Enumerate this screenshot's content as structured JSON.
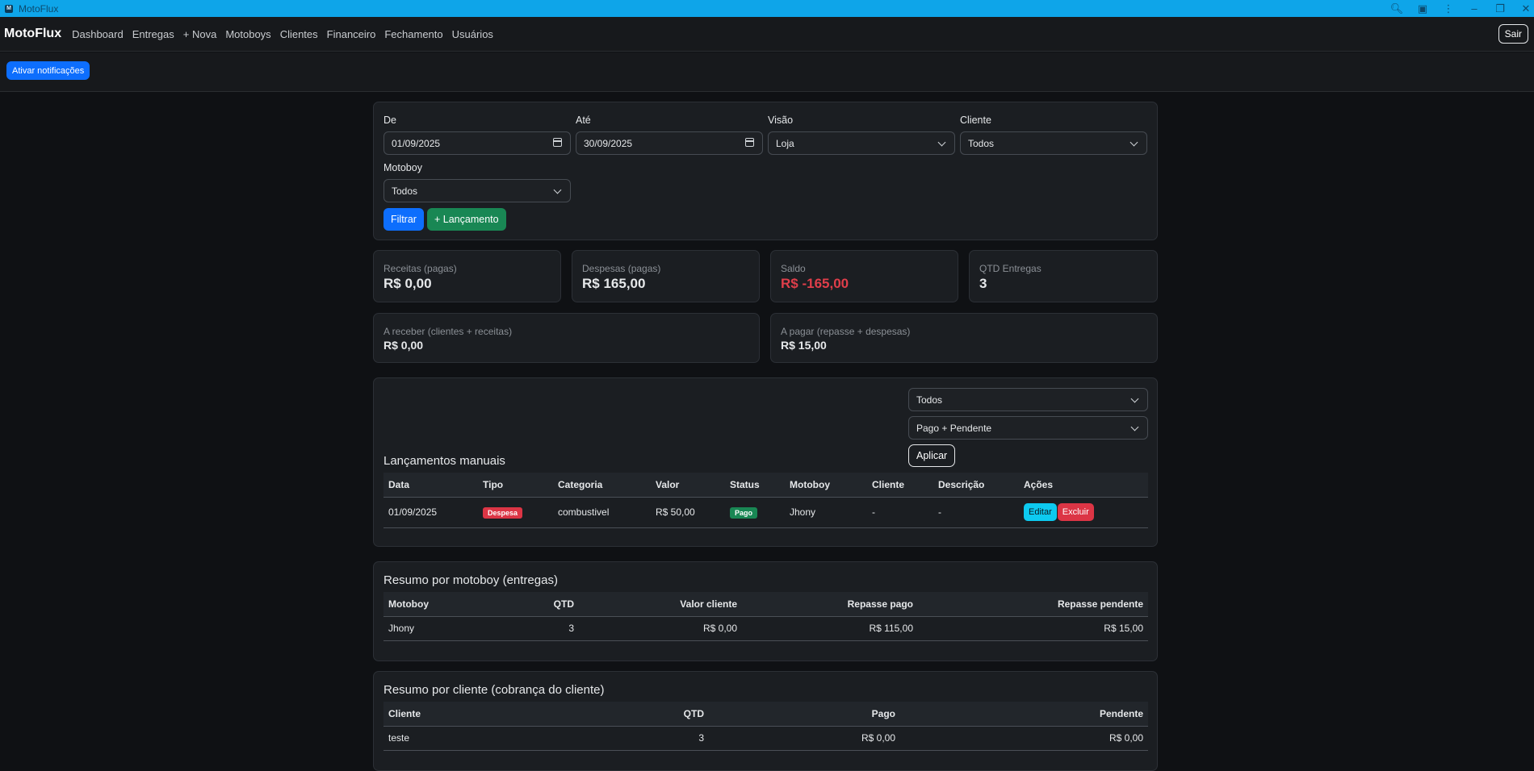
{
  "window": {
    "title": "MotoFlux",
    "app_icon": "M"
  },
  "nav": {
    "brand": "MotoFlux",
    "links": [
      "Dashboard",
      "Entregas",
      "+ Nova",
      "Motoboys",
      "Clientes",
      "Financeiro",
      "Fechamento",
      "Usuários"
    ],
    "logout": "Sair"
  },
  "notif": {
    "button": "Ativar notificações"
  },
  "filters": {
    "de_label": "De",
    "de_value": "01/09/2025",
    "ate_label": "Até",
    "ate_value": "30/09/2025",
    "visao_label": "Visão",
    "visao_value": "Loja",
    "cliente_label": "Cliente",
    "cliente_value": "Todos",
    "motoboy_label": "Motoboy",
    "motoboy_value": "Todos",
    "filtrar": "Filtrar",
    "lancamento": "+ Lançamento"
  },
  "cards": {
    "receitas_label": "Receitas (pagas)",
    "receitas_value": "R$ 0,00",
    "despesas_label": "Despesas (pagas)",
    "despesas_value": "R$ 165,00",
    "saldo_label": "Saldo",
    "saldo_value": "R$ -165,00",
    "qtd_label": "QTD Entregas",
    "qtd_value": "3",
    "receber_label": "A receber (clientes + receitas)",
    "receber_value": "R$ 0,00",
    "pagar_label": "A pagar (repasse + despesas)",
    "pagar_value": "R$ 15,00"
  },
  "manual": {
    "title": "Lançamentos manuais",
    "filter_tipo": "Todos",
    "filter_status": "Pago + Pendente",
    "apply": "Aplicar",
    "headers": [
      "Data",
      "Tipo",
      "Categoria",
      "Valor",
      "Status",
      "Motoboy",
      "Cliente",
      "Descrição",
      "Ações"
    ],
    "rows": [
      {
        "data": "01/09/2025",
        "tipo": "Despesa",
        "categoria": "combustivel",
        "valor": "R$ 50,00",
        "status": "Pago",
        "motoboy": "Jhony",
        "cliente": "-",
        "descricao": "-",
        "edit": "Editar",
        "delete": "Excluir"
      }
    ]
  },
  "resumo_motoboy": {
    "title": "Resumo por motoboy (entregas)",
    "headers": [
      "Motoboy",
      "QTD",
      "Valor cliente",
      "Repasse pago",
      "Repasse pendente"
    ],
    "rows": [
      {
        "motoboy": "Jhony",
        "qtd": "3",
        "valor_cliente": "R$ 0,00",
        "repasse_pago": "R$ 115,00",
        "repasse_pendente": "R$ 15,00"
      }
    ]
  },
  "resumo_cliente": {
    "title": "Resumo por cliente (cobrança do cliente)",
    "headers": [
      "Cliente",
      "QTD",
      "Pago",
      "Pendente"
    ],
    "rows": [
      {
        "cliente": "teste",
        "qtd": "3",
        "pago": "R$ 0,00",
        "pendente": "R$ 0,00"
      }
    ]
  },
  "colors": {
    "accent": "#0d6efd",
    "success": "#198754",
    "danger": "#dc3545",
    "info": "#0dcaf0",
    "titlebar": "#0ea5e9"
  }
}
